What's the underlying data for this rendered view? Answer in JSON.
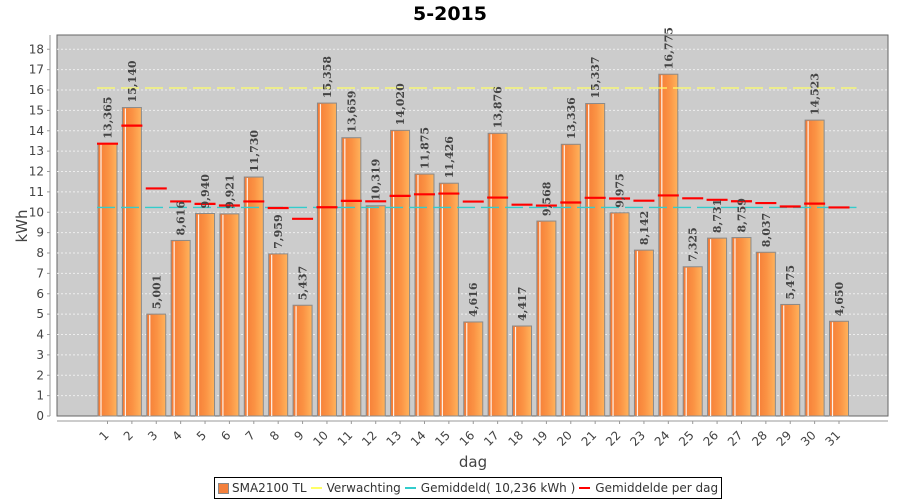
{
  "chart_data": {
    "type": "bar",
    "title": "5-2015",
    "xlabel": "dag",
    "ylabel": "kWh",
    "ylim": [
      0,
      18.7
    ],
    "yticks": [
      "0",
      "1",
      "2",
      "3",
      "4",
      "5",
      "6",
      "7",
      "8",
      "9",
      "10",
      "11",
      "12",
      "13",
      "14",
      "15",
      "16",
      "17",
      "18"
    ],
    "grid": true,
    "legend_position": "bottom",
    "categories": [
      "1",
      "2",
      "3",
      "4",
      "5",
      "6",
      "7",
      "8",
      "9",
      "10",
      "11",
      "12",
      "13",
      "14",
      "15",
      "16",
      "17",
      "18",
      "19",
      "20",
      "21",
      "22",
      "23",
      "24",
      "25",
      "26",
      "27",
      "28",
      "29",
      "30",
      "31"
    ],
    "series": [
      {
        "name": "SMA2100 TL",
        "kind": "bar",
        "color": "#f4803c",
        "values": [
          13.365,
          15.14,
          5.001,
          8.616,
          9.94,
          9.921,
          11.73,
          7.959,
          5.437,
          15.358,
          13.659,
          10.319,
          14.02,
          11.875,
          11.426,
          4.616,
          13.876,
          4.417,
          9.568,
          13.336,
          15.337,
          9.975,
          8.142,
          16.775,
          7.325,
          8.731,
          8.759,
          8.037,
          5.475,
          14.523,
          4.65
        ],
        "labels": [
          "13,365",
          "15,140",
          "5,001",
          "8,616",
          "9,940",
          "9,921",
          "11,730",
          "7,959",
          "5,437",
          "15,358",
          "13,659",
          "10,319",
          "14,020",
          "11,875",
          "11,426",
          "4,616",
          "13,876",
          "4,417",
          "9,568",
          "13,336",
          "15,337",
          "9,975",
          "8,142",
          "16,775",
          "7,325",
          "8,731",
          "8,759",
          "8,037",
          "5,475",
          "14,523",
          "4,650"
        ]
      },
      {
        "name": "Verwachting",
        "kind": "line-dashed",
        "color": "#ffff66",
        "value": 16.1
      },
      {
        "name": "Gemiddeld( 10,236 kWh )",
        "kind": "line-dashed",
        "color": "#33cccc",
        "value": 10.236
      },
      {
        "name": "Gemiddelde per dag",
        "kind": "step-marks",
        "color": "#ff0000",
        "values": [
          13.365,
          14.253,
          11.169,
          10.531,
          10.412,
          10.331,
          10.53,
          10.209,
          9.679,
          10.247,
          10.557,
          10.537,
          10.805,
          10.881,
          10.918,
          10.524,
          10.721,
          10.371,
          10.329,
          10.479,
          10.71,
          10.677,
          10.567,
          10.825,
          10.685,
          10.61,
          10.542,
          10.452,
          10.281,
          10.422,
          10.236
        ]
      }
    ]
  },
  "legend": [
    {
      "label": "SMA2100 TL",
      "color": "#f4803c",
      "kind": "box"
    },
    {
      "label": "Verwachting",
      "color": "#ffff66",
      "kind": "line"
    },
    {
      "label": "Gemiddeld( 10,236 kWh )",
      "color": "#33cccc",
      "kind": "line"
    },
    {
      "label": "Gemiddelde per dag",
      "color": "#ff0000",
      "kind": "line"
    }
  ]
}
